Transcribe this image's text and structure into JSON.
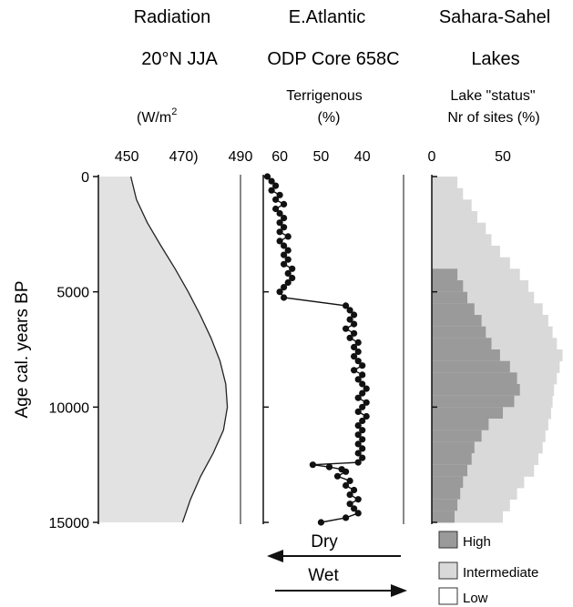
{
  "chart_data": {
    "type": "multi-panel-stratigraphic",
    "ylabel": "Age cal. years BP",
    "y_ticks": [
      "0",
      "5000",
      "10000",
      "15000"
    ],
    "ylim": [
      0,
      15000
    ],
    "panels": {
      "radiation": {
        "type": "area",
        "title": "Radiation",
        "subtitle": "20°N JJA",
        "unit_text": "(W/m",
        "unit_sup": "2",
        "x_ticks": [
          "450",
          "470)",
          "490"
        ],
        "xlim": [
          440,
          490
        ],
        "age": [
          0,
          1000,
          2000,
          3000,
          4000,
          5000,
          6000,
          7000,
          8000,
          9000,
          10000,
          11000,
          12000,
          13000,
          14000,
          15000
        ],
        "values": [
          451.4,
          453.4,
          457.2,
          462.0,
          467.0,
          471.6,
          475.8,
          479.6,
          482.8,
          484.8,
          485.4,
          484.0,
          480.4,
          476.0,
          472.4,
          469.6
        ]
      },
      "terrigenous": {
        "type": "line",
        "title": "E.Atlantic",
        "subtitle": "ODP Core 658C",
        "label_line1": "Terrigenous",
        "label_line2": "(%)",
        "x_ticks": [
          "60",
          "50",
          "40"
        ],
        "x_tick_values": [
          60,
          50,
          40
        ],
        "xlim": [
          64,
          30
        ],
        "age": [
          0,
          200,
          400,
          600,
          800,
          1000,
          1200,
          1400,
          1600,
          1800,
          2000,
          2200,
          2400,
          2600,
          2800,
          3000,
          3200,
          3400,
          3600,
          3800,
          4000,
          4200,
          4400,
          4600,
          4800,
          5000,
          5250,
          5600,
          5800,
          6000,
          6200,
          6400,
          6600,
          6800,
          7000,
          7200,
          7400,
          7600,
          7800,
          8000,
          8200,
          8400,
          8600,
          8800,
          9000,
          9200,
          9400,
          9600,
          9800,
          10000,
          10200,
          10400,
          10600,
          10800,
          11000,
          11200,
          11400,
          11600,
          11800,
          12000,
          12200,
          12400,
          12500,
          12600,
          12700,
          12800,
          13000,
          13200,
          13400,
          13600,
          13800,
          14000,
          14200,
          14400,
          14600,
          14800,
          15000
        ],
        "values": [
          63,
          62,
          61,
          62,
          60,
          61,
          59,
          61,
          60,
          59,
          60,
          59,
          60,
          58,
          60,
          59,
          58,
          59,
          58,
          59,
          57,
          58,
          57,
          58,
          59,
          60,
          59,
          44,
          43,
          42,
          43,
          42,
          44,
          42,
          43,
          41,
          42,
          41,
          42,
          41,
          40,
          42,
          40,
          41,
          40,
          39,
          40,
          41,
          39,
          40,
          41,
          39,
          40,
          41,
          40,
          41,
          40,
          41,
          40,
          41,
          40,
          41,
          52,
          48,
          45,
          44,
          46,
          43,
          44,
          42,
          43,
          41,
          43,
          42,
          41,
          44,
          50
        ]
      },
      "lakes": {
        "type": "stacked-step-area",
        "title": "Sahara-Sahel",
        "subtitle": "Lakes",
        "label_line1": "Lake \"status\"",
        "label_line2": "Nr of sites (%)",
        "x_ticks": [
          "0",
          "50"
        ],
        "x_tick_values": [
          0,
          50
        ],
        "xlim": [
          0,
          100
        ],
        "bin_size": 500,
        "age_bins": [
          0,
          500,
          1000,
          1500,
          2000,
          2500,
          3000,
          3500,
          4000,
          4500,
          5000,
          5500,
          6000,
          6500,
          7000,
          7500,
          8000,
          8500,
          9000,
          9500,
          10000,
          10500,
          11000,
          11500,
          12000,
          12500,
          13000,
          13500,
          14000,
          14500
        ],
        "series": [
          {
            "name": "High",
            "color": "#9a9a9a",
            "values": [
              0,
              0,
              0,
              0,
              0,
              0,
              0,
              0,
              18,
              22,
              25,
              30,
              35,
              38,
              42,
              48,
              55,
              60,
              62,
              58,
              50,
              40,
              35,
              30,
              28,
              25,
              22,
              20,
              18,
              16
            ]
          },
          {
            "name": "Intermediate",
            "color": "#d9d9d9",
            "values": [
              18,
              22,
              28,
              32,
              38,
              42,
              48,
              55,
              62,
              68,
              72,
              78,
              82,
              85,
              88,
              92,
              90,
              88,
              86,
              85,
              84,
              82,
              80,
              78,
              75,
              72,
              65,
              60,
              55,
              50
            ]
          },
          {
            "name": "Low",
            "color": "#ffffff",
            "values": []
          }
        ]
      }
    },
    "annotations": {
      "dry": "Dry",
      "wet": "Wet"
    }
  }
}
